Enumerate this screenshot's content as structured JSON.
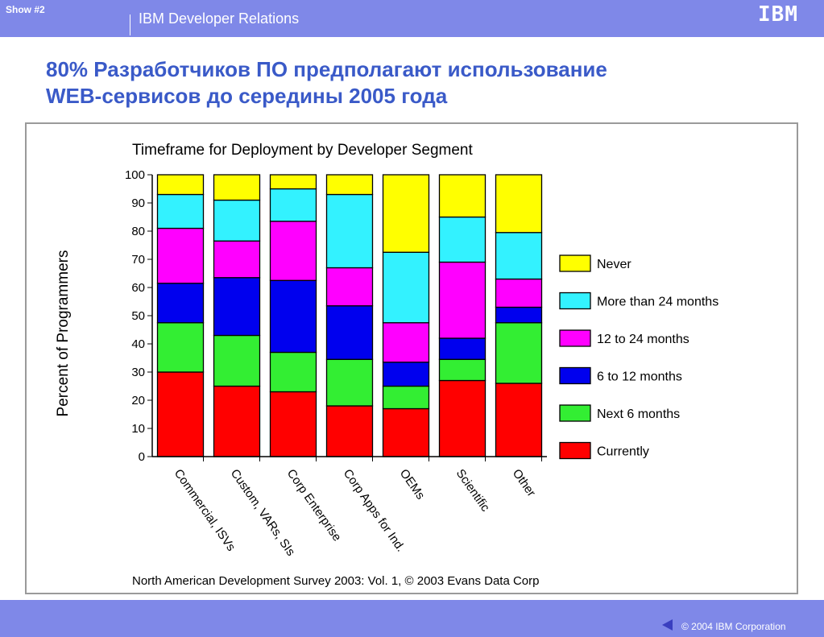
{
  "header": {
    "show_label": "Show #2",
    "org": "IBM Developer Relations",
    "logo": "IBM"
  },
  "slide": {
    "title_line1": "80% Разработчиков ПО предполагают использование",
    "title_line2": "WEB-сервисов до середины 2005 года"
  },
  "footer": {
    "copyright": "© 2004 IBM Corporation",
    "back_icon": "left-triangle-icon"
  },
  "colors": {
    "bar_blue": "#7f88e8",
    "title_blue": "#3a5ac8"
  },
  "chart_data": {
    "type": "bar",
    "stacked": true,
    "title": "Timeframe for Deployment by Developer Segment",
    "ylabel": "Percent of Programmers",
    "xlabel": "",
    "ylim": [
      0,
      100
    ],
    "yticks": [
      0,
      10,
      20,
      30,
      40,
      50,
      60,
      70,
      80,
      90,
      100
    ],
    "categories": [
      "Commercial, ISVs",
      "Custom, VARs, SIs",
      "Corp Enterprise",
      "Corp Apps for Ind.",
      "OEMs",
      "Scientific",
      "Other"
    ],
    "legend_position": "right",
    "series": [
      {
        "name": "Currently",
        "color": "#ff0000",
        "values": [
          30,
          25,
          23,
          18,
          17,
          27,
          26
        ]
      },
      {
        "name": "Next 6 months",
        "color": "#33ee33",
        "values": [
          17.5,
          18,
          14,
          16.5,
          8,
          7.5,
          21.5
        ]
      },
      {
        "name": "6 to 12 months",
        "color": "#0000ee",
        "values": [
          14,
          20.5,
          25.5,
          19,
          8.5,
          7.5,
          5.5
        ]
      },
      {
        "name": "12 to 24 months",
        "color": "#ff00ff",
        "values": [
          19.5,
          13,
          21,
          13.5,
          14,
          27,
          10
        ]
      },
      {
        "name": "More than 24 months",
        "color": "#33f2ff",
        "values": [
          12,
          14.5,
          11.5,
          26,
          25,
          16,
          16.5
        ]
      },
      {
        "name": "Never",
        "color": "#ffff00",
        "values": [
          7,
          9,
          5,
          7,
          27.5,
          15,
          20.5
        ]
      }
    ],
    "source": "North American Development Survey 2003: Vol. 1, © 2003 Evans Data Corp"
  }
}
